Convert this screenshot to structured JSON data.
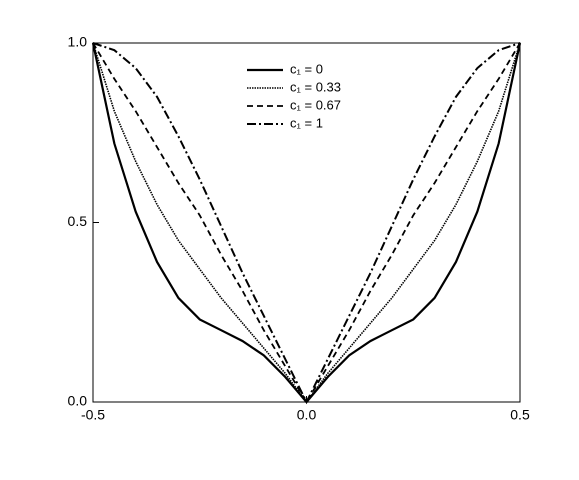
{
  "chart_data": {
    "type": "line",
    "x": [
      -0.5,
      -0.45,
      -0.4,
      -0.35,
      -0.3,
      -0.25,
      -0.2,
      -0.15,
      -0.1,
      -0.05,
      0,
      0.05,
      0.1,
      0.15,
      0.2,
      0.25,
      0.3,
      0.35,
      0.4,
      0.45,
      0.5
    ],
    "series": [
      {
        "name": "c₁ = 0",
        "color": "#000000",
        "style": "solid",
        "values": [
          1.0,
          0.72,
          0.53,
          0.39,
          0.29,
          0.23,
          0.2,
          0.17,
          0.13,
          0.07,
          0,
          0.07,
          0.13,
          0.17,
          0.2,
          0.23,
          0.29,
          0.39,
          0.53,
          0.72,
          1.0
        ]
      },
      {
        "name": "c₁ = 0.33",
        "color": "#000000",
        "style": "dotted",
        "values": [
          1.0,
          0.81,
          0.67,
          0.55,
          0.45,
          0.37,
          0.29,
          0.22,
          0.15,
          0.08,
          0,
          0.08,
          0.15,
          0.22,
          0.29,
          0.37,
          0.45,
          0.55,
          0.67,
          0.81,
          1.0
        ]
      },
      {
        "name": "c₁ = 0.67",
        "color": "#000000",
        "style": "dashed",
        "values": [
          1.0,
          0.9,
          0.81,
          0.71,
          0.61,
          0.52,
          0.41,
          0.31,
          0.2,
          0.1,
          0,
          0.1,
          0.2,
          0.31,
          0.41,
          0.52,
          0.61,
          0.71,
          0.81,
          0.9,
          1.0
        ]
      },
      {
        "name": "c₁ = 1",
        "color": "#000000",
        "style": "dashdot",
        "values": [
          1.0,
          0.98,
          0.93,
          0.85,
          0.74,
          0.62,
          0.49,
          0.36,
          0.24,
          0.12,
          0,
          0.12,
          0.24,
          0.36,
          0.49,
          0.62,
          0.74,
          0.85,
          0.93,
          0.98,
          1.0
        ]
      }
    ],
    "xlim": [
      -0.5,
      0.5
    ],
    "xticks": [
      -0.5,
      {
        "value": 0,
        "label": "0.0"
      },
      0.5
    ],
    "ylim": [
      0,
      1
    ],
    "yticks": [
      {
        "value": 0,
        "label": "0.0"
      },
      0.5,
      {
        "value": 1,
        "label": "1.0"
      }
    ],
    "legend": "top-center"
  }
}
